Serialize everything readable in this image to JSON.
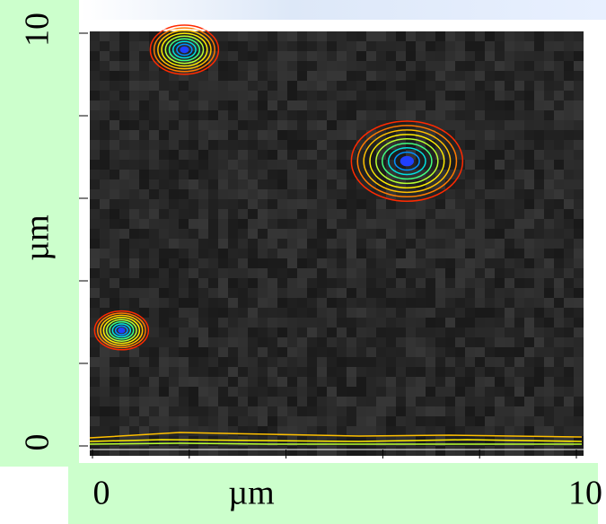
{
  "chart_data": {
    "type": "contour",
    "xlabel": "µm",
    "ylabel": "µm",
    "x": [
      1.9,
      6.5,
      0.6
    ],
    "values": [
      9.6,
      6.9,
      2.8
    ],
    "colors": [
      "#ff2a00",
      "#ff7a00",
      "#ffc000",
      "#ffee00",
      "#b8ff30",
      "#40ff80",
      "#00e0e0",
      "#0090ff",
      "#2040ff"
    ],
    "xlim": [
      0,
      10
    ],
    "ylim": [
      0,
      10
    ],
    "xticks": [
      0,
      {
        "value": 2,
        "label": null
      },
      {
        "value": 4,
        "label": null
      },
      {
        "value": 6,
        "label": null
      },
      {
        "value": 8,
        "label": null
      },
      10
    ],
    "yticks": [
      0,
      {
        "value": 2,
        "label": null
      },
      {
        "value": 4,
        "label": null
      },
      {
        "value": 6,
        "label": null
      },
      {
        "value": 8,
        "label": null
      },
      10
    ]
  }
}
